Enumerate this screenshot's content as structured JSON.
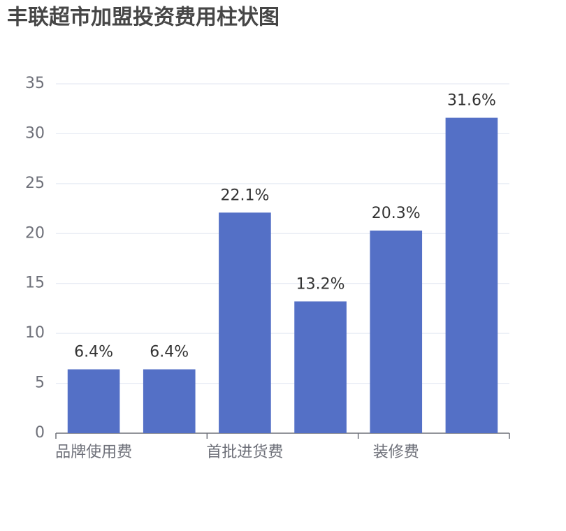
{
  "chart_data": {
    "type": "bar",
    "title": "丰联超市加盟投资费用柱状图",
    "categories": [
      "品牌使用费",
      null,
      "首批进货费",
      null,
      "装修费",
      null
    ],
    "values": [
      6.4,
      6.4,
      22.1,
      13.2,
      20.3,
      31.6
    ],
    "value_labels": [
      "6.4%",
      "6.4%",
      "22.1%",
      "13.2%",
      "20.3%",
      "31.6%"
    ],
    "color": "#5470c6",
    "ylim": [
      0,
      35
    ],
    "yticks": [
      0,
      5,
      10,
      15,
      20,
      25,
      30,
      35
    ],
    "grid": true
  }
}
